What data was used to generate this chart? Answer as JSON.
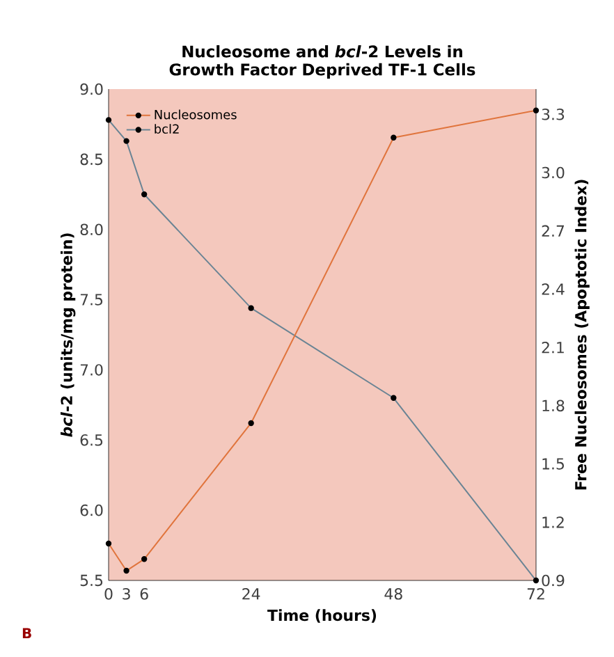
{
  "chart_data": {
    "type": "line",
    "title": "Nucleosome and *bcl*-2 Levels in Growth Factor Deprived TF-1 Cells",
    "xlabel": "Time (hours)",
    "ylabel": "*bcl*-2 (units/mg protein)",
    "y2label": "Free Nucleosomes (Apoptotic Index)",
    "x": [
      0,
      3,
      6,
      24,
      48,
      72
    ],
    "xlim": [
      0,
      72
    ],
    "xticks": [
      0,
      3,
      6,
      24,
      48,
      72
    ],
    "ylim": [
      5.5,
      9.0
    ],
    "yticks": [
      {
        "value": 5.5,
        "label": "5.5"
      },
      {
        "value": 6.0,
        "label": "6.0"
      },
      {
        "value": 6.5,
        "label": "6.5"
      },
      {
        "value": 7.0,
        "label": "7.0"
      },
      {
        "value": 7.5,
        "label": "7.5"
      },
      {
        "value": 8.0,
        "label": "8.0"
      },
      {
        "value": 8.5,
        "label": "8.5"
      },
      {
        "value": 9.0,
        "label": "9.0"
      }
    ],
    "y2lim": [
      0.9,
      3.43
    ],
    "y2ticks": [
      0.9,
      1.2,
      1.5,
      1.8,
      2.1,
      2.4,
      2.7,
      {
        "value": 3.0,
        "label": "3.0"
      },
      3.3
    ],
    "series": [
      {
        "name": "Nucleosomes",
        "color": "#e0743c",
        "axis": "y2",
        "values": [
          1.09,
          0.95,
          1.01,
          1.71,
          3.18,
          3.32
        ]
      },
      {
        "name": "bcl2",
        "color": "#6a8494",
        "values": [
          8.78,
          8.63,
          8.25,
          7.44,
          6.8,
          5.5
        ]
      }
    ],
    "marker": "circle",
    "line_style": "solid",
    "legend": "top left",
    "annotations": [
      "B"
    ]
  }
}
